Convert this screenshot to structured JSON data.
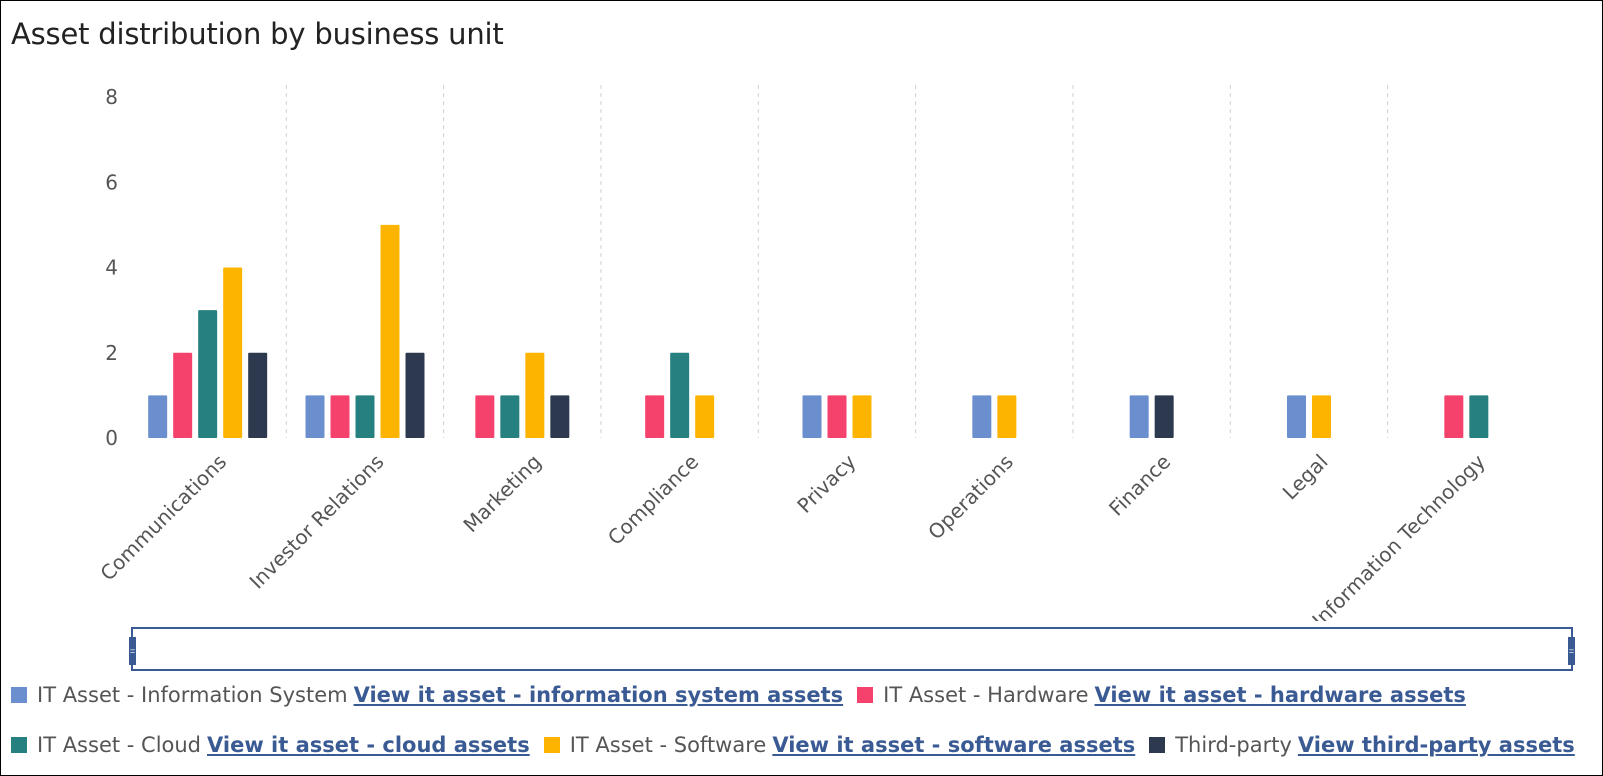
{
  "chart_data": {
    "type": "bar",
    "title": "Asset distribution by business unit",
    "categories": [
      "Communications",
      "Investor Relations",
      "Marketing",
      "Compliance",
      "Privacy",
      "Operations",
      "Finance",
      "Legal",
      "Information Technology"
    ],
    "ylim": [
      0,
      8
    ],
    "y_ticks": [
      "0",
      "2",
      "4",
      "6",
      "8"
    ],
    "grid": "vertical-dashed",
    "legend_position": "bottom",
    "series": [
      {
        "name": "IT Asset - Information System",
        "color": "#6b8fce",
        "link": "View it asset - information system assets",
        "values": [
          1,
          1,
          0,
          0,
          1,
          1,
          1,
          1,
          0
        ]
      },
      {
        "name": "IT Asset - Hardware",
        "color": "#f5426c",
        "link": "View it asset - hardware assets",
        "values": [
          2,
          1,
          1,
          1,
          1,
          0,
          0,
          0,
          1
        ]
      },
      {
        "name": "IT Asset - Cloud",
        "color": "#268080",
        "link": "View it asset - cloud assets",
        "values": [
          3,
          1,
          1,
          2,
          0,
          0,
          0,
          0,
          1
        ]
      },
      {
        "name": "IT Asset - Software",
        "color": "#fdb400",
        "link": "View it asset - software assets",
        "values": [
          4,
          5,
          2,
          1,
          1,
          1,
          0,
          1,
          0
        ]
      },
      {
        "name": "Third-party",
        "color": "#2d394e",
        "link": "View third-party assets",
        "values": [
          2,
          2,
          1,
          0,
          0,
          0,
          1,
          0,
          0
        ]
      }
    ]
  }
}
